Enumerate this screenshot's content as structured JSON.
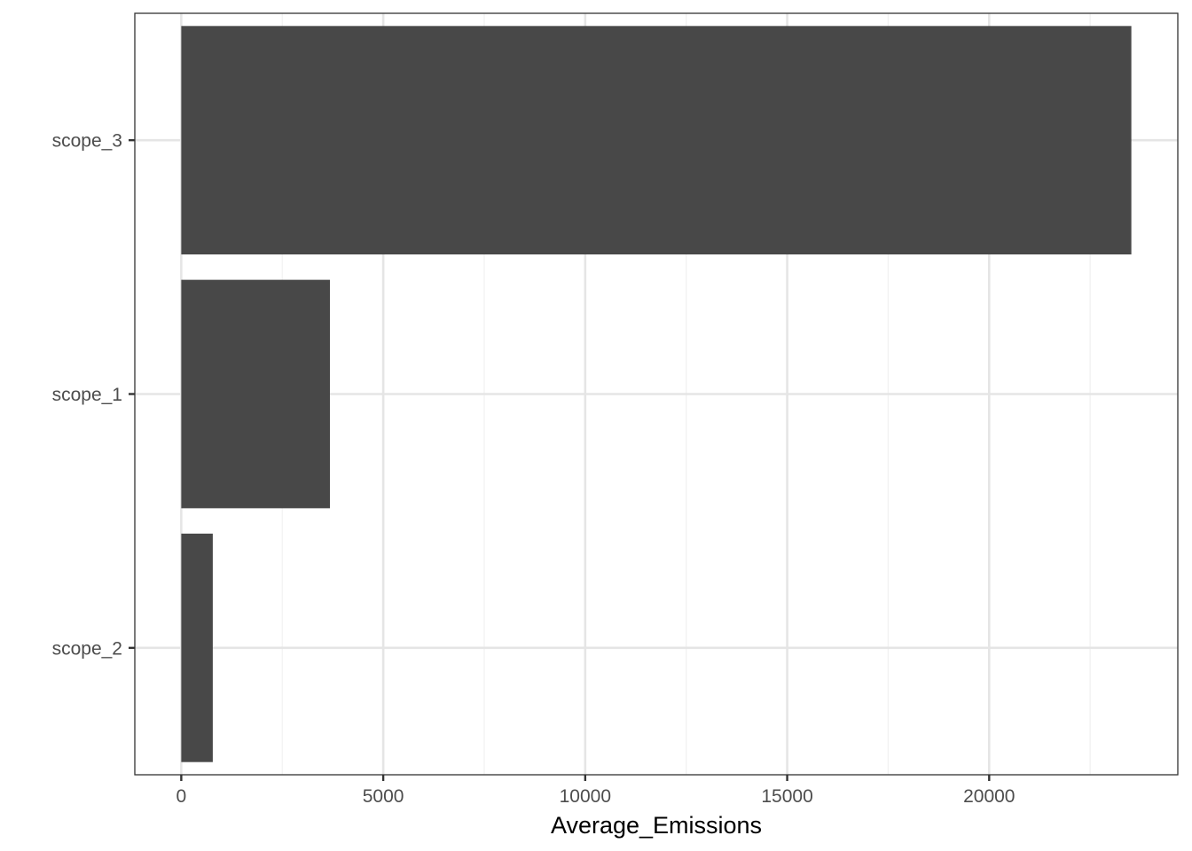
{
  "chart_data": {
    "type": "bar",
    "orientation": "horizontal",
    "title": "",
    "xlabel": "Average_Emissions",
    "ylabel": "",
    "categories": [
      "scope_3",
      "scope_1",
      "scope_2"
    ],
    "values": [
      23520,
      3680,
      780
    ],
    "xlim": [
      -1150,
      24670
    ],
    "x_ticks": [
      0,
      5000,
      10000,
      15000,
      20000
    ],
    "x_tick_labels": [
      "0",
      "5000",
      "10000",
      "15000",
      "20000"
    ],
    "grid": true,
    "theme": "bw",
    "colors": {
      "bar": "#484848",
      "grid_major": "#e5e5e5",
      "grid_minor": "#f2f2f2",
      "panel_border": "#333333",
      "tick": "#333333"
    }
  }
}
